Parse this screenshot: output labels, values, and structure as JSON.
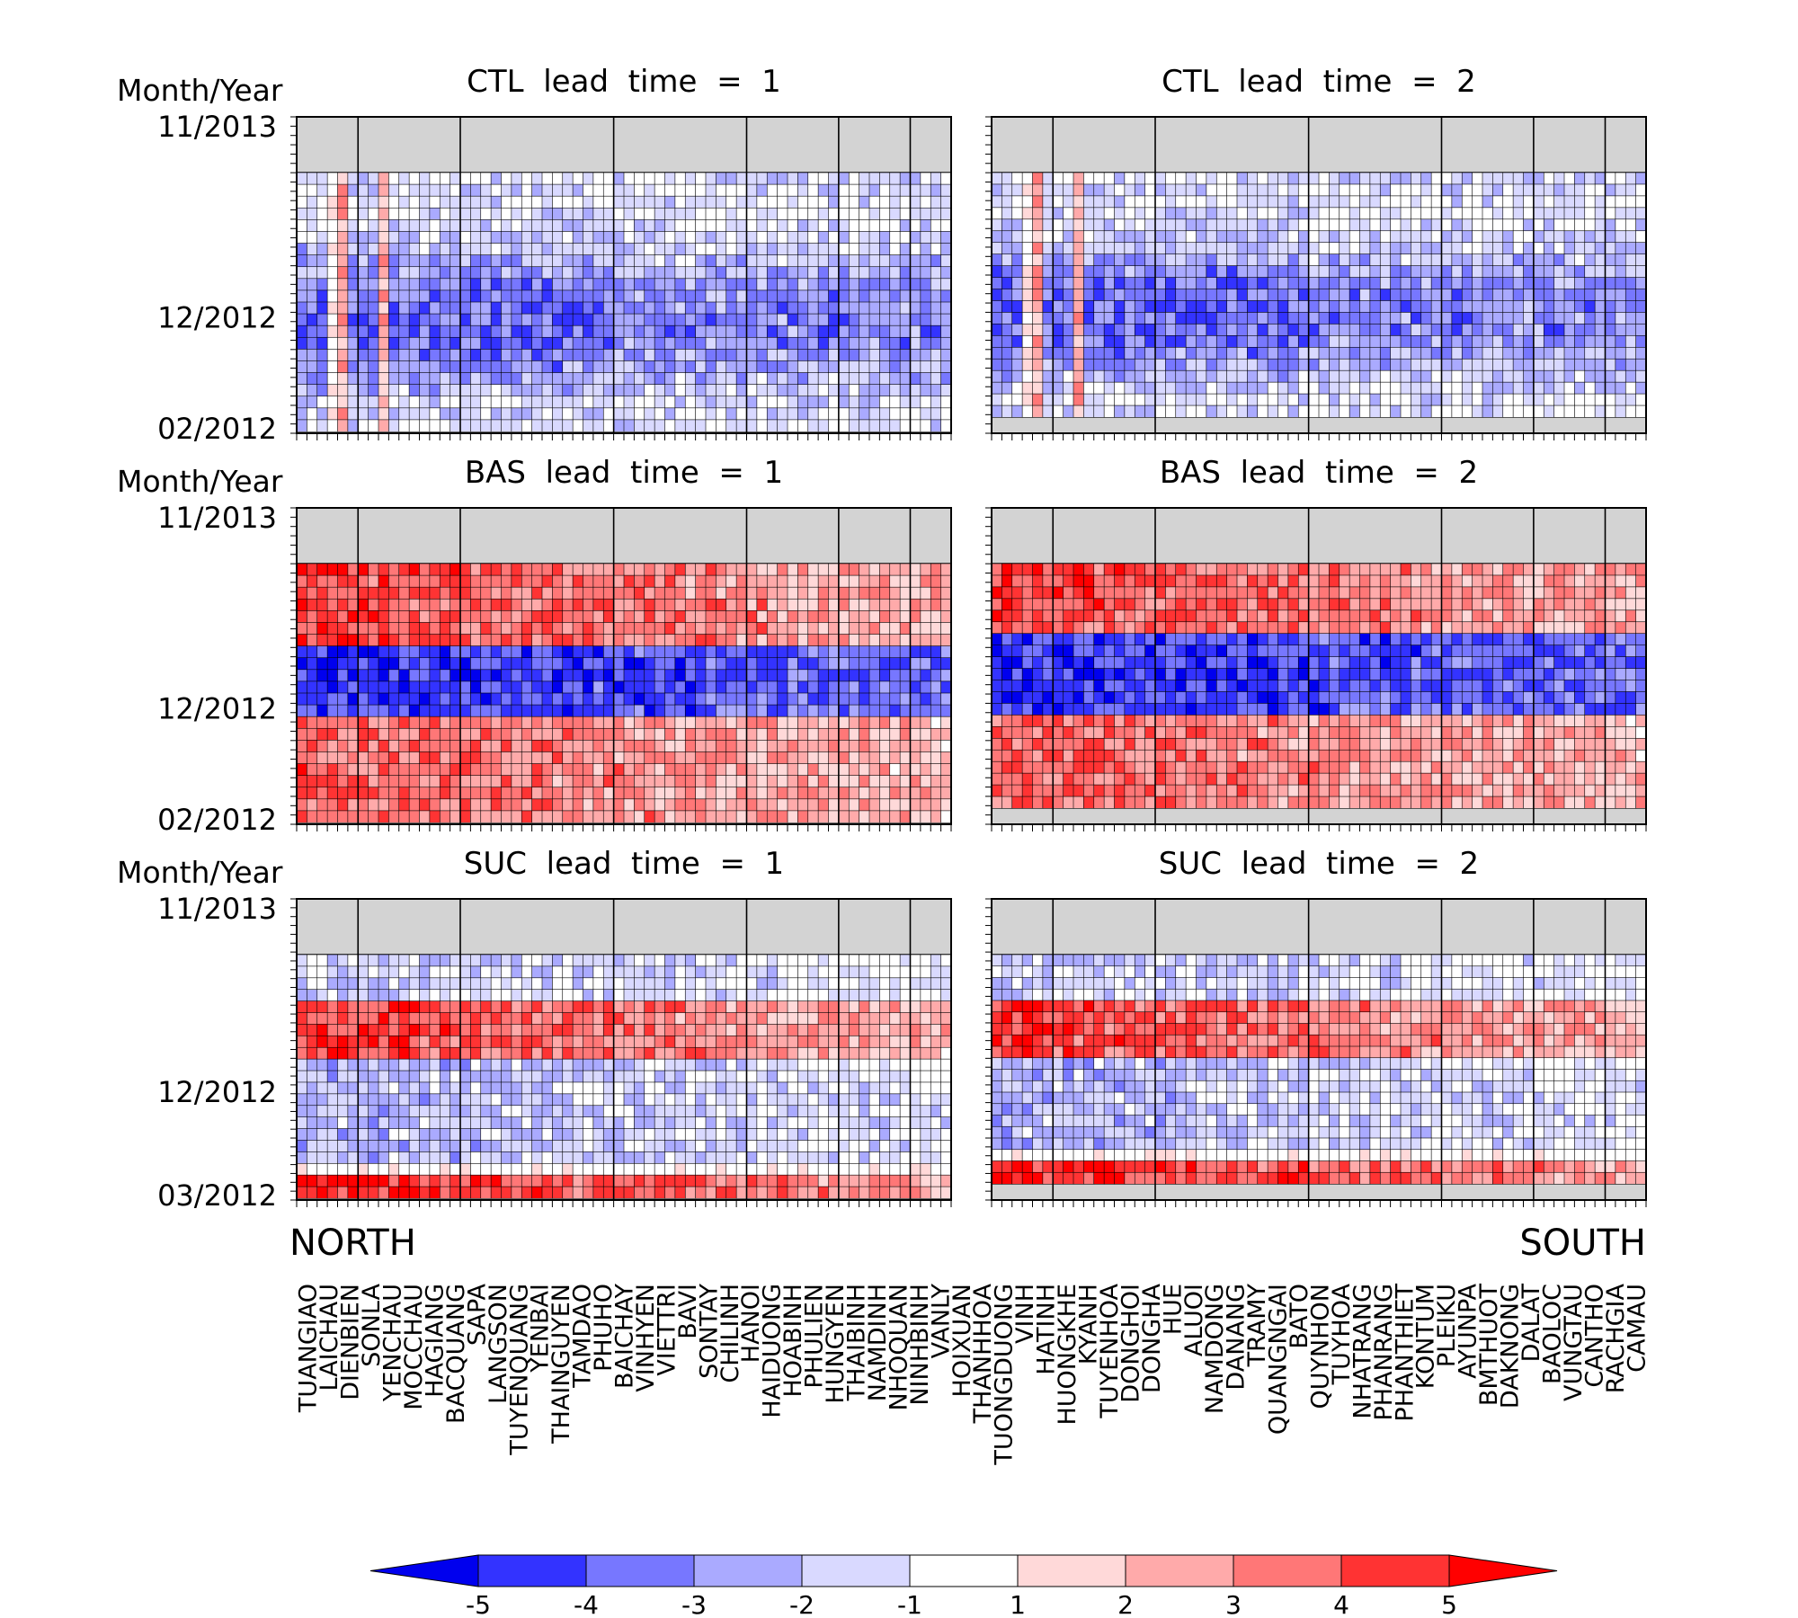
{
  "chart_data": {
    "type": "heatmap",
    "panels": [
      {
        "title": "CTL  lead  time  =  1",
        "y_axis_title": "Month/Year",
        "y_ticks": [
          "11/2013",
          "12/2012",
          "02/2012"
        ],
        "pattern": "ctl",
        "months": 22
      },
      {
        "title": "CTL  lead  time  =  2",
        "y_axis_title": "",
        "y_ticks": [],
        "pattern": "ctl",
        "months": 21
      },
      {
        "title": "BAS  lead  time  =  1",
        "y_axis_title": "Month/Year",
        "y_ticks": [
          "11/2013",
          "12/2012",
          "02/2012"
        ],
        "pattern": "bas",
        "months": 22
      },
      {
        "title": "BAS  lead  time  =  2",
        "y_axis_title": "",
        "y_ticks": [],
        "pattern": "bas",
        "months": 21
      },
      {
        "title": "SUC  lead  time  =  1",
        "y_axis_title": "Month/Year",
        "y_ticks": [
          "11/2013",
          "12/2012",
          "03/2012"
        ],
        "pattern": "suc",
        "months": 21
      },
      {
        "title": "SUC  lead  time  =  2",
        "y_axis_title": "",
        "y_ticks": [],
        "pattern": "suc",
        "months": 20
      }
    ],
    "region_group_sizes": [
      6,
      10,
      15,
      13,
      9,
      7,
      4
    ],
    "stations": [
      "TUANGIAO",
      "LAICHAU",
      "DIENBIEN",
      "SONLA",
      "YENCHAU",
      "MOCCHAU",
      "HAGIANG",
      "BACQUANG",
      "SAPA",
      "LANGSON",
      "TUYENQUANG",
      "YENBAI",
      "THAINGUYEN",
      "TAMDAO",
      "PHUHO",
      "BAICHAY",
      "VINHYEN",
      "VIETTRI",
      "BAVI",
      "SONTAY",
      "CHILINH",
      "HANOI",
      "HAIDUONG",
      "HOABINH",
      "PHULIEN",
      "HUNGYEN",
      "THAIBINH",
      "NAMDINH",
      "NHOQUAN",
      "NINHBINH",
      "VANLY",
      "HOIXUAN",
      "THANHHOA",
      "TUONGDUONG",
      "VINH",
      "HATINH",
      "HUONGKHE",
      "KYANH",
      "TUYENHOA",
      "DONGHOI",
      "DONGHA",
      "HUE",
      "ALUOI",
      "NAMDONG",
      "DANANG",
      "TRAMY",
      "QUANGNGAI",
      "BATO",
      "QUYNHON",
      "TUYHOA",
      "NHATRANG",
      "PHANRANG",
      "PHANTHIET",
      "KONTUM",
      "PLEIKU",
      "AYUNPA",
      "BMTHUOT",
      "DAKNONG",
      "DALAT",
      "BAOLOC",
      "VUNGTAU",
      "CANTHO",
      "RACHGIA",
      "CAMAU"
    ],
    "north_label": "NORTH",
    "south_label": "SOUTH",
    "colorbar": {
      "ticks": [
        "-5",
        "-4",
        "-3",
        "-2",
        "-1",
        "1",
        "2",
        "3",
        "4",
        "5"
      ],
      "colors": [
        "#0000ee",
        "#3333ff",
        "#7777ff",
        "#aaaaff",
        "#d9d9ff",
        "#ffffff",
        "#ffd9d9",
        "#ffaaaa",
        "#ff7777",
        "#ff3333",
        "#ff0000"
      ],
      "extend": "both"
    },
    "missing_color": "#d3d3d3",
    "grid": true
  }
}
